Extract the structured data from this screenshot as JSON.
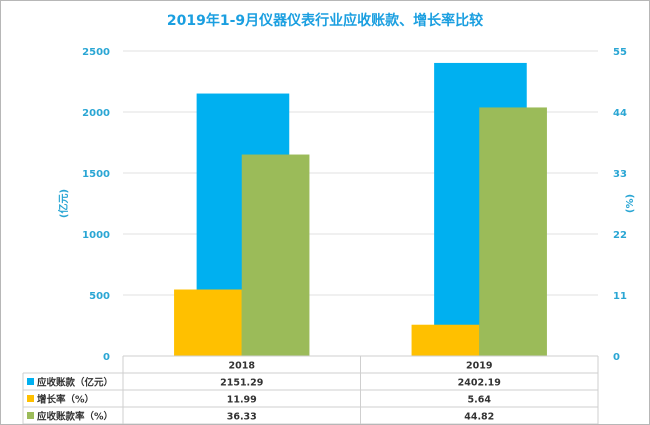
{
  "chart_data": {
    "type": "bar",
    "title": "2019年1-9月仪器仪表行业应收账款、增长率比较",
    "categories": [
      "2018",
      "2019"
    ],
    "ylabel": "(亿元)",
    "ylabel_right": "(%)",
    "ylim": [
      0,
      2500
    ],
    "yticks": [
      "0",
      "500",
      "1000",
      "1500",
      "2000",
      "2500"
    ],
    "y2lim": [
      0,
      55
    ],
    "y2ticks": [
      "0",
      "11",
      "22",
      "33",
      "44",
      "55"
    ],
    "grid": true,
    "series": [
      {
        "name": "应收账款（亿元）",
        "axis": "left",
        "color": "#00b0f0",
        "values": [
          2151.29,
          2402.19
        ],
        "labels": [
          "2151.29",
          "2402.19"
        ]
      },
      {
        "name": "增长率（%）",
        "axis": "right",
        "color": "#ffc000",
        "values": [
          11.99,
          5.64
        ],
        "labels": [
          "11.99",
          "5.64"
        ]
      },
      {
        "name": "应收账款率（%）",
        "axis": "right",
        "color": "#9bbb59",
        "values": [
          36.33,
          44.82
        ],
        "labels": [
          "36.33",
          "44.82"
        ]
      }
    ]
  }
}
